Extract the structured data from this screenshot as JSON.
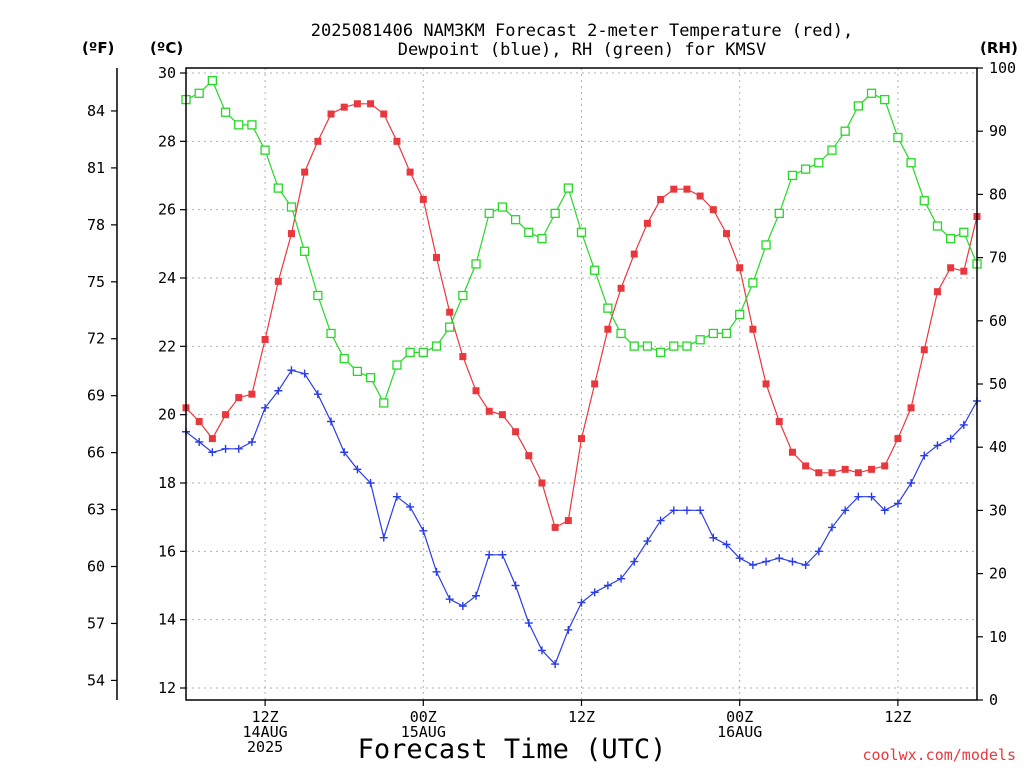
{
  "chart_data": {
    "type": "line",
    "title_line1": "2025081406 NAM3KM Forecast 2-meter Temperature (red),",
    "title_line2": "Dewpoint (blue), RH (green) for KMSV",
    "xlabel": "Forecast Time (UTC)",
    "credit": "coolwx.com/models",
    "left_unit_f": "(ºF)",
    "left_unit_c": "(ºC)",
    "right_unit": "(RH)",
    "xlim_hours": [
      6,
      66
    ],
    "ylim_c": [
      12,
      30.5
    ],
    "ylim_rh": [
      0,
      100
    ],
    "grid": true,
    "c_ticks": [
      "12",
      "14",
      "16",
      "18",
      "20",
      "22",
      "24",
      "26",
      "28",
      "30"
    ],
    "f_ticks": [
      "54",
      "57",
      "60",
      "63",
      "66",
      "69",
      "72",
      "75",
      "78",
      "81",
      "84"
    ],
    "rh_ticks": [
      "0",
      "10",
      "20",
      "30",
      "40",
      "50",
      "60",
      "70",
      "80",
      "90",
      "100"
    ],
    "x_ticks": [
      {
        "hour": 12,
        "lines": [
          "12Z",
          "14AUG",
          "2025"
        ]
      },
      {
        "hour": 24,
        "lines": [
          "00Z",
          "15AUG"
        ]
      },
      {
        "hour": 36,
        "lines": [
          "12Z"
        ]
      },
      {
        "hour": 48,
        "lines": [
          "00Z",
          "16AUG"
        ]
      },
      {
        "hour": 60,
        "lines": [
          "12Z"
        ]
      }
    ],
    "hours": [
      6,
      7,
      8,
      9,
      10,
      11,
      12,
      13,
      14,
      15,
      16,
      17,
      18,
      19,
      20,
      21,
      22,
      23,
      24,
      25,
      26,
      27,
      28,
      29,
      30,
      31,
      32,
      33,
      34,
      35,
      36,
      37,
      38,
      39,
      40,
      41,
      42,
      43,
      44,
      45,
      46,
      47,
      48,
      49,
      50,
      51,
      52,
      53,
      54,
      55,
      56,
      57,
      58,
      59,
      60,
      61,
      62,
      63,
      64,
      65,
      66
    ],
    "series": [
      {
        "name": "2-meter Temperature",
        "unit": "C",
        "color": "#e8383d",
        "marker": "filled-square",
        "values": [
          20.2,
          19.8,
          19.3,
          20.0,
          20.5,
          20.6,
          22.2,
          23.9,
          25.3,
          27.1,
          28.0,
          28.8,
          29.0,
          29.1,
          29.1,
          28.8,
          28.0,
          27.1,
          26.3,
          24.6,
          23.0,
          21.7,
          20.7,
          20.1,
          20.0,
          19.5,
          18.8,
          18.0,
          16.7,
          16.9,
          19.3,
          20.9,
          22.5,
          23.7,
          24.7,
          25.6,
          26.3,
          26.6,
          26.6,
          26.4,
          26.0,
          25.3,
          24.3,
          22.5,
          20.9,
          19.8,
          18.9,
          18.5,
          18.3,
          18.3,
          18.4,
          18.3,
          18.4,
          18.5,
          19.3,
          20.2,
          21.9,
          23.6,
          24.3,
          24.2,
          25.8
        ]
      },
      {
        "name": "Dewpoint",
        "unit": "C",
        "color": "#2a3de8",
        "marker": "plus",
        "values": [
          19.5,
          19.2,
          18.9,
          19.0,
          19.0,
          19.2,
          20.2,
          20.7,
          21.3,
          21.2,
          20.6,
          19.8,
          18.9,
          18.4,
          18.0,
          16.4,
          17.6,
          17.3,
          16.6,
          15.4,
          14.6,
          14.4,
          14.7,
          15.9,
          15.9,
          15.0,
          13.9,
          13.1,
          12.7,
          13.7,
          14.5,
          14.8,
          15.0,
          15.2,
          15.7,
          16.3,
          16.9,
          17.2,
          17.2,
          17.2,
          16.4,
          16.2,
          15.8,
          15.6,
          15.7,
          15.8,
          15.7,
          15.6,
          16.0,
          16.7,
          17.2,
          17.6,
          17.6,
          17.2,
          17.4,
          18.0,
          18.8,
          19.1,
          19.3,
          19.7,
          20.4
        ]
      },
      {
        "name": "RH",
        "unit": "%",
        "color": "#27d827",
        "marker": "open-square",
        "values": [
          95,
          96,
          98,
          93,
          91,
          91,
          87,
          81,
          78,
          71,
          64,
          58,
          54,
          52,
          51,
          47,
          53,
          55,
          55,
          56,
          59,
          64,
          69,
          77,
          78,
          76,
          74,
          73,
          77,
          81,
          74,
          68,
          62,
          58,
          56,
          56,
          55,
          56,
          56,
          57,
          58,
          58,
          61,
          66,
          72,
          77,
          83,
          84,
          85,
          87,
          90,
          94,
          96,
          95,
          89,
          85,
          79,
          75,
          73,
          74,
          69
        ]
      }
    ]
  }
}
